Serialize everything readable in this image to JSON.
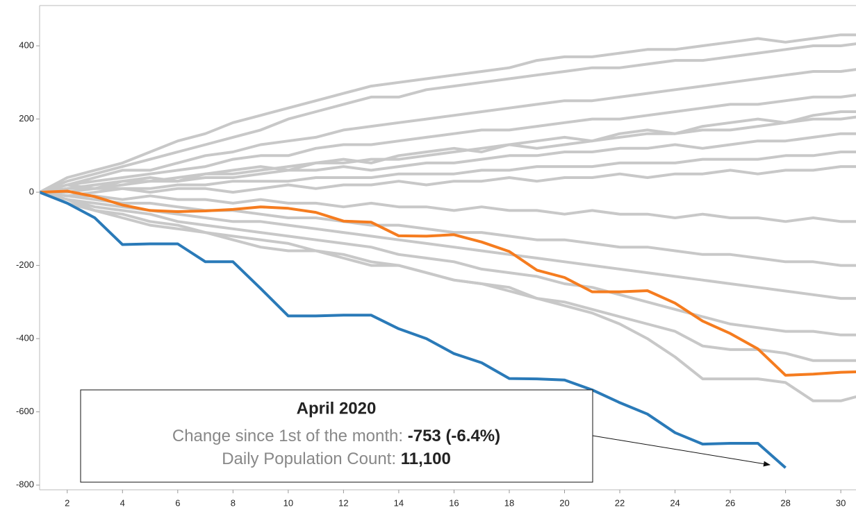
{
  "chart_data": {
    "type": "line",
    "x": [
      1,
      2,
      3,
      4,
      5,
      6,
      7,
      8,
      9,
      10,
      11,
      12,
      13,
      14,
      15,
      16,
      17,
      18,
      19,
      20,
      21,
      22,
      23,
      24,
      25,
      26,
      27,
      28,
      29,
      30,
      31
    ],
    "xlim": [
      1,
      30.55
    ],
    "xticks": [
      2,
      4,
      6,
      8,
      10,
      12,
      14,
      16,
      18,
      20,
      22,
      24,
      26,
      28,
      30
    ],
    "ylim": [
      -813,
      510
    ],
    "yticks": [
      -800,
      -600,
      -400,
      -200,
      0,
      200,
      400
    ],
    "series": [
      {
        "color": "#c8c8c8",
        "values": [
          0,
          40,
          60,
          80,
          110,
          140,
          160,
          190,
          210,
          230,
          250,
          270,
          290,
          300,
          310,
          320,
          330,
          340,
          360,
          370,
          370,
          380,
          390,
          390,
          400,
          410,
          420,
          410,
          420,
          430,
          430
        ]
      },
      {
        "color": "#c8c8c8",
        "values": [
          0,
          30,
          50,
          70,
          90,
          110,
          130,
          150,
          170,
          200,
          220,
          240,
          260,
          260,
          280,
          290,
          300,
          310,
          320,
          330,
          340,
          340,
          350,
          360,
          360,
          370,
          380,
          390,
          400,
          400,
          410
        ]
      },
      {
        "color": "#c8c8c8",
        "values": [
          0,
          20,
          40,
          60,
          60,
          80,
          100,
          110,
          130,
          140,
          150,
          170,
          180,
          190,
          200,
          210,
          220,
          230,
          240,
          250,
          250,
          260,
          270,
          280,
          290,
          300,
          310,
          320,
          330,
          330,
          340
        ]
      },
      {
        "color": "#c8c8c8",
        "values": [
          0,
          20,
          30,
          40,
          50,
          60,
          70,
          90,
          100,
          100,
          120,
          130,
          130,
          140,
          150,
          160,
          170,
          170,
          180,
          190,
          200,
          200,
          210,
          220,
          230,
          240,
          240,
          250,
          260,
          260,
          270
        ]
      },
      {
        "color": "#c8c8c8",
        "values": [
          0,
          10,
          20,
          30,
          30,
          40,
          50,
          50,
          60,
          70,
          80,
          80,
          90,
          90,
          100,
          110,
          120,
          130,
          120,
          130,
          140,
          150,
          160,
          160,
          170,
          170,
          180,
          190,
          200,
          200,
          210
        ]
      },
      {
        "color": "#c8c8c8",
        "values": [
          0,
          10,
          10,
          20,
          30,
          30,
          40,
          40,
          50,
          60,
          60,
          70,
          60,
          70,
          80,
          80,
          90,
          100,
          100,
          110,
          110,
          120,
          120,
          130,
          120,
          130,
          140,
          140,
          150,
          160,
          160
        ]
      },
      {
        "color": "#c8c8c8",
        "values": [
          0,
          0,
          10,
          10,
          10,
          20,
          20,
          30,
          30,
          30,
          40,
          40,
          40,
          50,
          50,
          50,
          60,
          60,
          70,
          70,
          70,
          80,
          80,
          80,
          90,
          90,
          90,
          100,
          100,
          110,
          110
        ]
      },
      {
        "color": "#c8c8c8",
        "values": [
          0,
          -10,
          0,
          10,
          0,
          10,
          10,
          0,
          10,
          20,
          10,
          20,
          20,
          30,
          20,
          30,
          30,
          40,
          30,
          40,
          40,
          50,
          40,
          50,
          50,
          60,
          50,
          60,
          60,
          70,
          70
        ]
      },
      {
        "color": "#c8c8c8",
        "values": [
          0,
          -10,
          -10,
          -20,
          -10,
          -20,
          -20,
          -30,
          -20,
          -30,
          -30,
          -40,
          -30,
          -40,
          -40,
          -50,
          -40,
          -50,
          -50,
          -60,
          -50,
          -60,
          -60,
          -70,
          -60,
          -70,
          -70,
          -80,
          -70,
          -80,
          -80
        ]
      },
      {
        "color": "#c8c8c8",
        "values": [
          0,
          -10,
          -20,
          -30,
          -30,
          -40,
          -50,
          -50,
          -60,
          -70,
          -70,
          -80,
          -90,
          -90,
          -100,
          -110,
          -110,
          -120,
          -130,
          -130,
          -140,
          -150,
          -150,
          -160,
          -170,
          -170,
          -180,
          -190,
          -190,
          -200,
          -200
        ]
      },
      {
        "color": "#c8c8c8",
        "values": [
          0,
          -20,
          -30,
          -40,
          -50,
          -60,
          -70,
          -80,
          -80,
          -90,
          -100,
          -110,
          -120,
          -130,
          -140,
          -150,
          -160,
          -170,
          -180,
          -190,
          -200,
          -210,
          -220,
          -230,
          -240,
          -250,
          -260,
          -270,
          -280,
          -290,
          -290
        ]
      },
      {
        "color": "#c8c8c8",
        "values": [
          0,
          -20,
          -40,
          -50,
          -60,
          -80,
          -90,
          -100,
          -110,
          -120,
          -130,
          -140,
          -150,
          -170,
          -180,
          -190,
          -210,
          -220,
          -230,
          -250,
          -260,
          -280,
          -300,
          -320,
          -340,
          -360,
          -370,
          -380,
          -380,
          -390,
          -390
        ]
      },
      {
        "color": "#c8c8c8",
        "values": [
          0,
          -30,
          -50,
          -70,
          -90,
          -100,
          -110,
          -120,
          -130,
          -140,
          -160,
          -170,
          -190,
          -200,
          -220,
          -240,
          -250,
          -270,
          -290,
          -310,
          -330,
          -360,
          -400,
          -450,
          -510,
          -510,
          -510,
          -520,
          -570,
          -570,
          -550
        ]
      },
      {
        "color": "#c8c8c8",
        "values": [
          0,
          -20,
          -50,
          -60,
          -80,
          -90,
          -110,
          -130,
          -150,
          -160,
          -160,
          -180,
          -200,
          -200,
          -220,
          -240,
          -250,
          -260,
          -290,
          -300,
          -320,
          -340,
          -360,
          -380,
          -420,
          -430,
          -430,
          -440,
          -460,
          -460,
          -460
        ]
      },
      {
        "color": "#c8c8c8",
        "values": [
          0,
          20,
          10,
          30,
          40,
          30,
          50,
          60,
          70,
          60,
          80,
          90,
          80,
          100,
          110,
          120,
          110,
          130,
          140,
          150,
          140,
          160,
          170,
          160,
          180,
          190,
          200,
          190,
          210,
          220,
          220
        ]
      },
      {
        "color": "#f57c1f",
        "values": [
          0,
          3,
          -12,
          -35,
          -50,
          -53,
          -51,
          -47,
          -40,
          -44,
          -55,
          -79,
          -82,
          -119,
          -120,
          -116,
          -136,
          -162,
          -213,
          -233,
          -272,
          -272,
          -269,
          -303,
          -352,
          -386,
          -428,
          -500,
          -497,
          -492,
          -490
        ]
      },
      {
        "color": "#2a7ab8",
        "values": [
          0,
          -30,
          -70,
          -143,
          -141,
          -141,
          -190,
          -190,
          -263,
          -338,
          -338,
          -336,
          -336,
          -373,
          -400,
          -441,
          -466,
          -509,
          -510,
          -513,
          -540,
          -575,
          -606,
          -657,
          -688,
          -686,
          -686,
          -753,
          null,
          null,
          null
        ]
      }
    ],
    "annotation": {
      "title": "April 2020",
      "lines": [
        {
          "label": "Change since 1st of the month:",
          "value": "-753 (-6.4%)"
        },
        {
          "label": "Daily Population Count:",
          "value": "11,100"
        }
      ]
    }
  }
}
